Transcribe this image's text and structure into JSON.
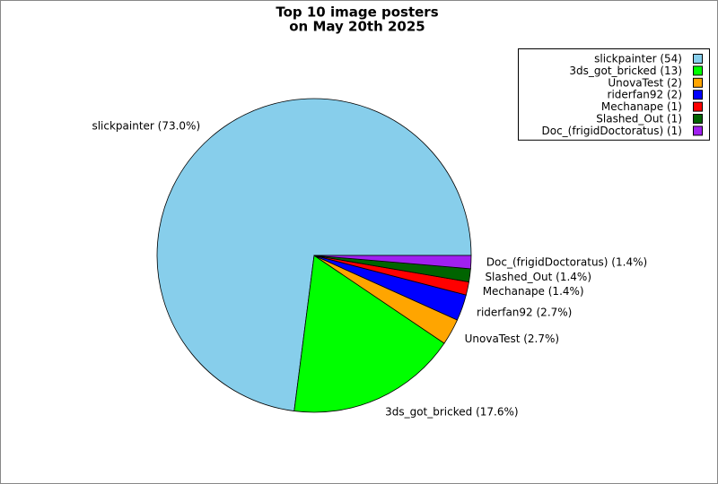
{
  "chart_data": {
    "type": "pie",
    "title": "Top 10 image posters",
    "subtitle": "on May 20th 2025",
    "legend_labels": [
      "slickpainter (54)",
      "3ds_got_bricked (13)",
      "UnovaTest (2)",
      "riderfan92 (2)",
      "Mechanape (1)",
      "Slashed_Out (1)",
      "Doc_(frigidDoctoratus) (1)"
    ],
    "values": [
      54,
      13,
      2,
      2,
      1,
      1,
      1
    ],
    "value_labels": [
      "slickpainter (73.0%)",
      "3ds_got_bricked (17.6%)",
      "UnovaTest (2.7%)",
      "riderfan92 (2.7%)",
      "Mechanape (1.4%)",
      "Slashed_Out (1.4%)",
      "Doc_(frigidDoctoratus) (1.4%)"
    ],
    "colors": [
      "#87ceeb",
      "#00ff00",
      "#ffa500",
      "#0000ff",
      "#ff0000",
      "#006400",
      "#a020f0"
    ],
    "legend": "upper right"
  }
}
